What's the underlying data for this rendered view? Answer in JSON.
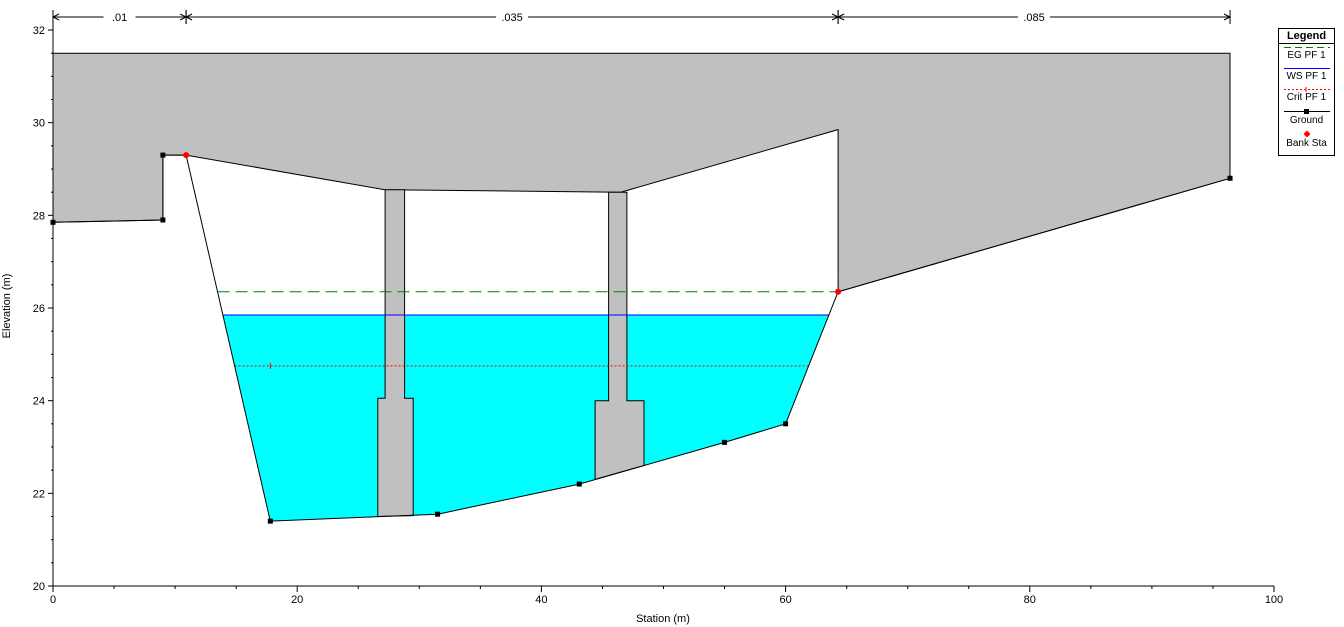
{
  "chart_data": {
    "type": "cross-section",
    "xlabel": "Station (m)",
    "ylabel": "Elevation (m)",
    "xlim": [
      0,
      100
    ],
    "ylim": [
      20,
      32
    ],
    "x_ticks": [
      0,
      20,
      40,
      60,
      80,
      100
    ],
    "y_ticks": [
      20,
      22,
      24,
      26,
      28,
      30,
      32
    ],
    "mannings_n": [
      {
        "label": ".01",
        "from": 0,
        "to": 10.9
      },
      {
        "label": ".035",
        "from": 10.9,
        "to": 64.3
      },
      {
        "label": ".085",
        "from": 64.3,
        "to": 96.4
      }
    ],
    "ground": {
      "name": "Ground",
      "color": "#000000",
      "points": [
        [
          0,
          27.85
        ],
        [
          9,
          27.9
        ],
        [
          9,
          29.3
        ],
        [
          10.9,
          29.3
        ],
        [
          17.8,
          21.4
        ],
        [
          31.5,
          21.55
        ],
        [
          43.1,
          22.2
        ],
        [
          55,
          23.1
        ],
        [
          60,
          23.5
        ],
        [
          64.3,
          26.35
        ],
        [
          96.4,
          28.8
        ]
      ]
    },
    "bank_stations": {
      "name": "Bank Sta",
      "color": "#ff0000",
      "points": [
        [
          10.9,
          29.3
        ],
        [
          64.3,
          26.35
        ]
      ]
    },
    "deck_top": 31.5,
    "deck_bottom": [
      [
        10.9,
        29.3
      ],
      [
        27.2,
        28.55
      ],
      [
        46.5,
        28.5
      ],
      [
        64.3,
        29.85
      ]
    ],
    "deck_extent": [
      0,
      96.4
    ],
    "piers": [
      {
        "top_x": [
          27.2,
          28.8
        ],
        "base_x": [
          26.6,
          29.5
        ],
        "step": 24.05,
        "bottom": 21.5
      },
      {
        "top_x": [
          45.5,
          47
        ],
        "base_x": [
          44.4,
          48.4
        ],
        "step": 24.0,
        "bottom": 22.3
      }
    ],
    "water_surface": {
      "name": "WS PF 1",
      "elevation": 25.85,
      "color": "#0000ff",
      "fill": "#00ffff"
    },
    "energy_grade": {
      "name": "EG PF 1",
      "elevation": 26.35,
      "color": "#008000"
    },
    "critical_depth": {
      "name": "Crit PF 1",
      "elevation": 24.75,
      "color": "#ff0000"
    },
    "legend_title": "Legend",
    "legend_position": "top-right",
    "colors": {
      "deck": "#c0c0c0",
      "water": "#00ffff"
    }
  }
}
